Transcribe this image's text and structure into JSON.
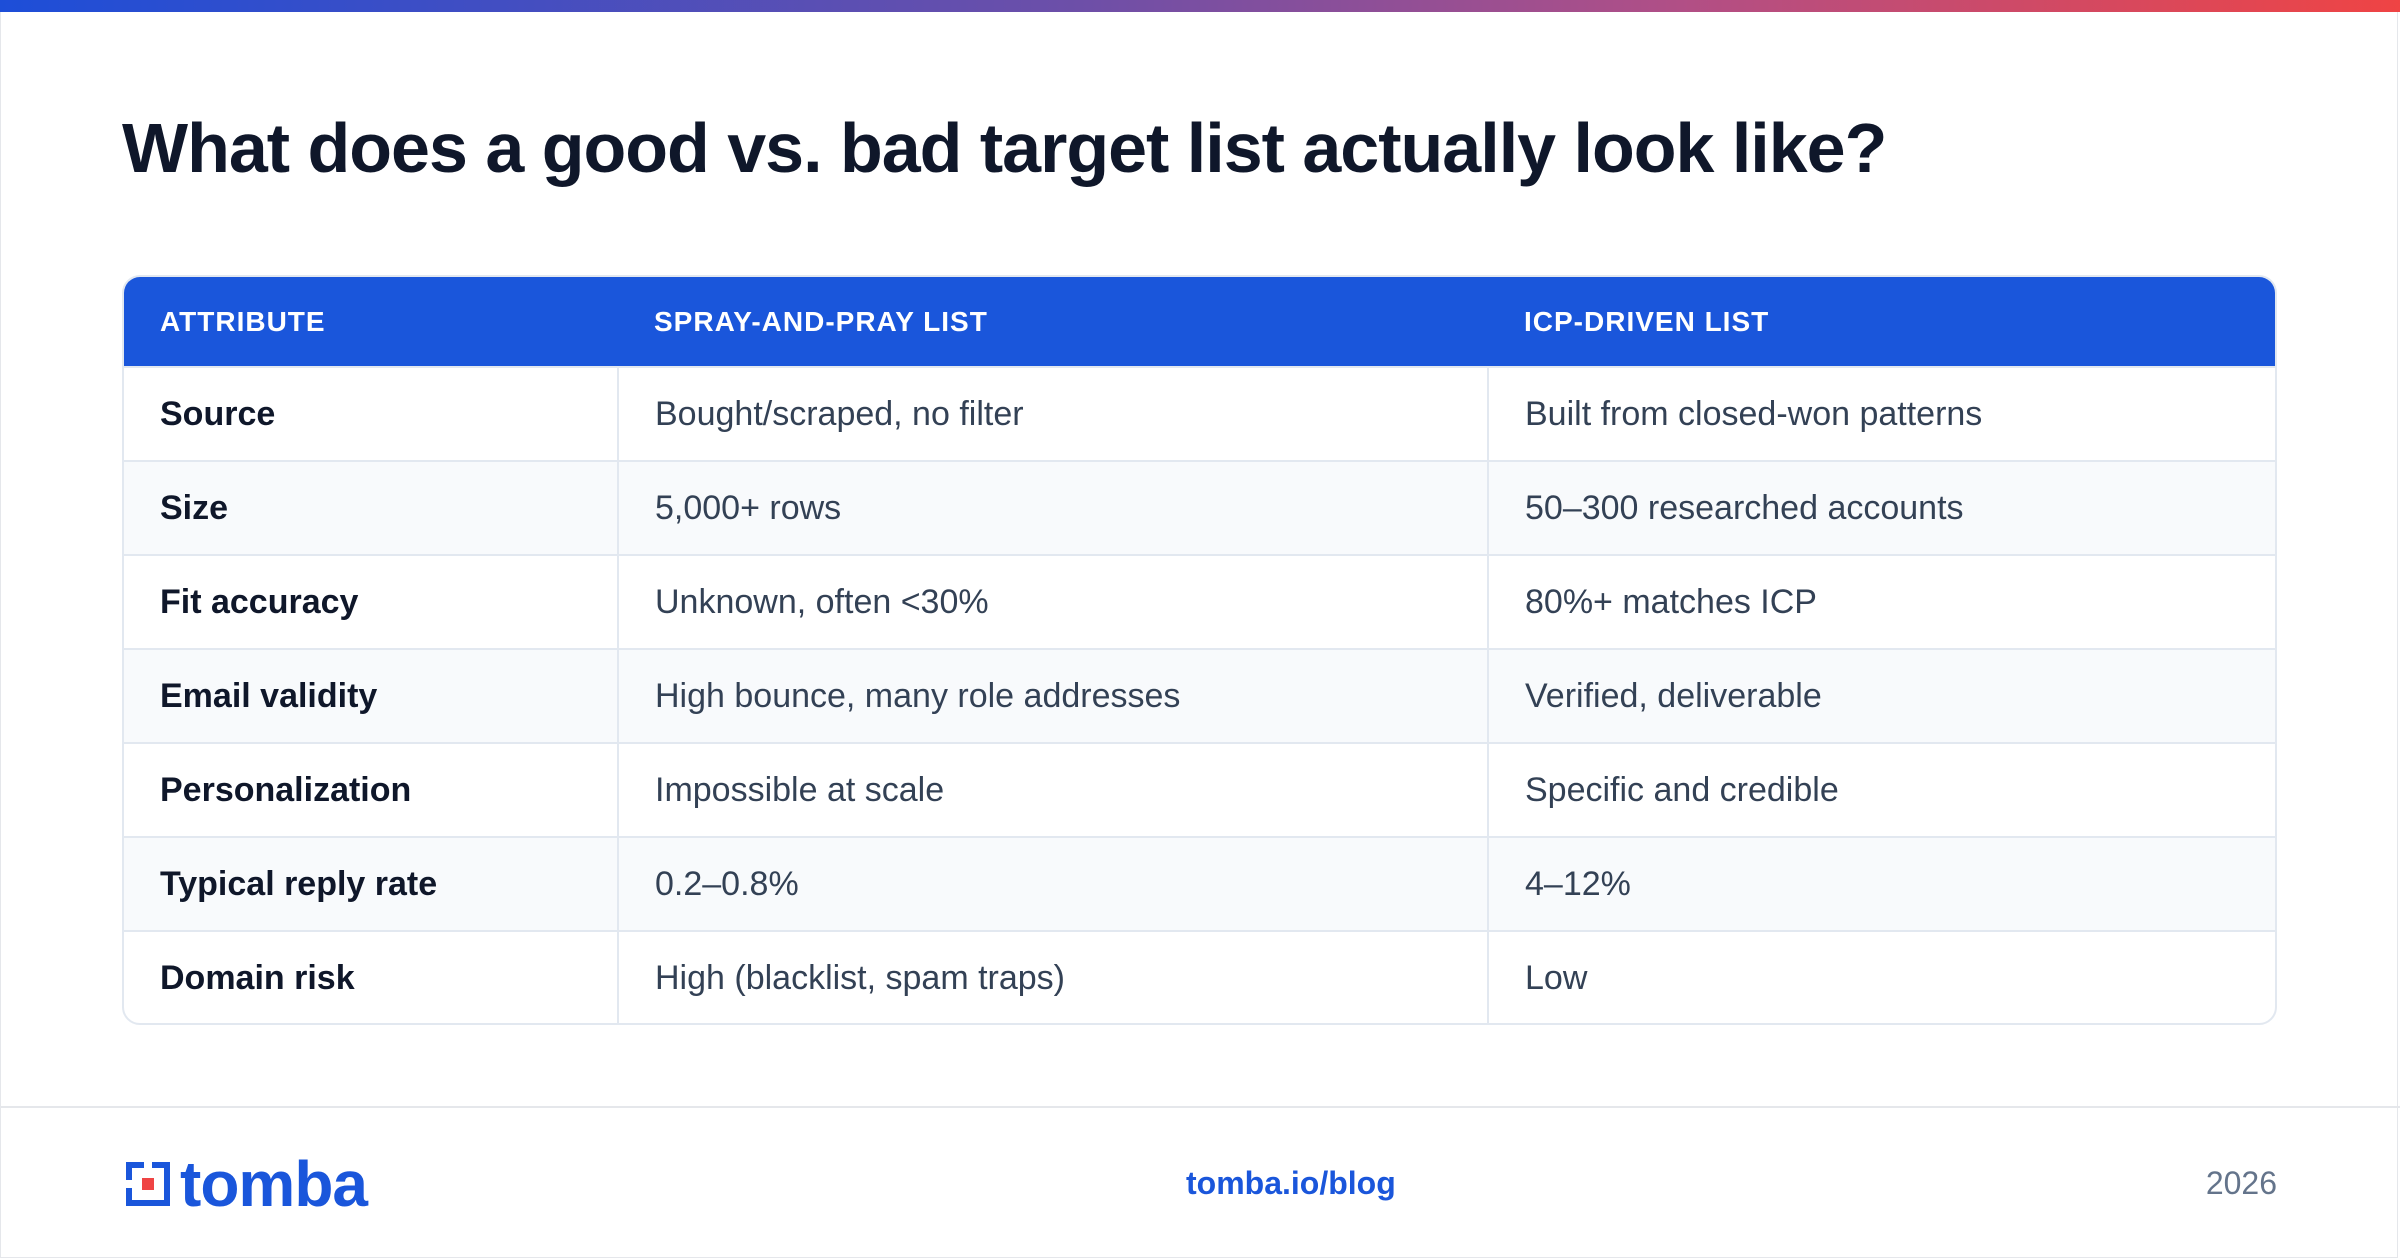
{
  "title": "What does a good vs. bad target list actually look like?",
  "table": {
    "headers": [
      "ATTRIBUTE",
      "SPRAY-AND-PRAY LIST",
      "ICP-DRIVEN LIST"
    ],
    "rows": [
      {
        "attribute": "Source",
        "spray": "Bought/scraped, no filter",
        "icp": "Built from closed-won patterns"
      },
      {
        "attribute": "Size",
        "spray": "5,000+ rows",
        "icp": "50–300 researched accounts"
      },
      {
        "attribute": "Fit accuracy",
        "spray": "Unknown, often <30%",
        "icp": "80%+ matches ICP"
      },
      {
        "attribute": "Email validity",
        "spray": "High bounce, many role addresses",
        "icp": "Verified, deliverable"
      },
      {
        "attribute": "Personalization",
        "spray": "Impossible at scale",
        "icp": "Specific and credible"
      },
      {
        "attribute": "Typical reply rate",
        "spray": "0.2–0.8%",
        "icp": "4–12%"
      },
      {
        "attribute": "Domain risk",
        "spray": "High (blacklist, spam traps)",
        "icp": "Low"
      }
    ]
  },
  "footer": {
    "logo_text": "tomba",
    "link": "tomba.io/blog",
    "year": "2026"
  },
  "colors": {
    "accent": "#1a56db",
    "logo_red": "#ef4444",
    "gradient_start": "#1d4ed8",
    "gradient_end": "#ef4444"
  },
  "icons": {
    "logo": "tomba-logo-icon"
  }
}
